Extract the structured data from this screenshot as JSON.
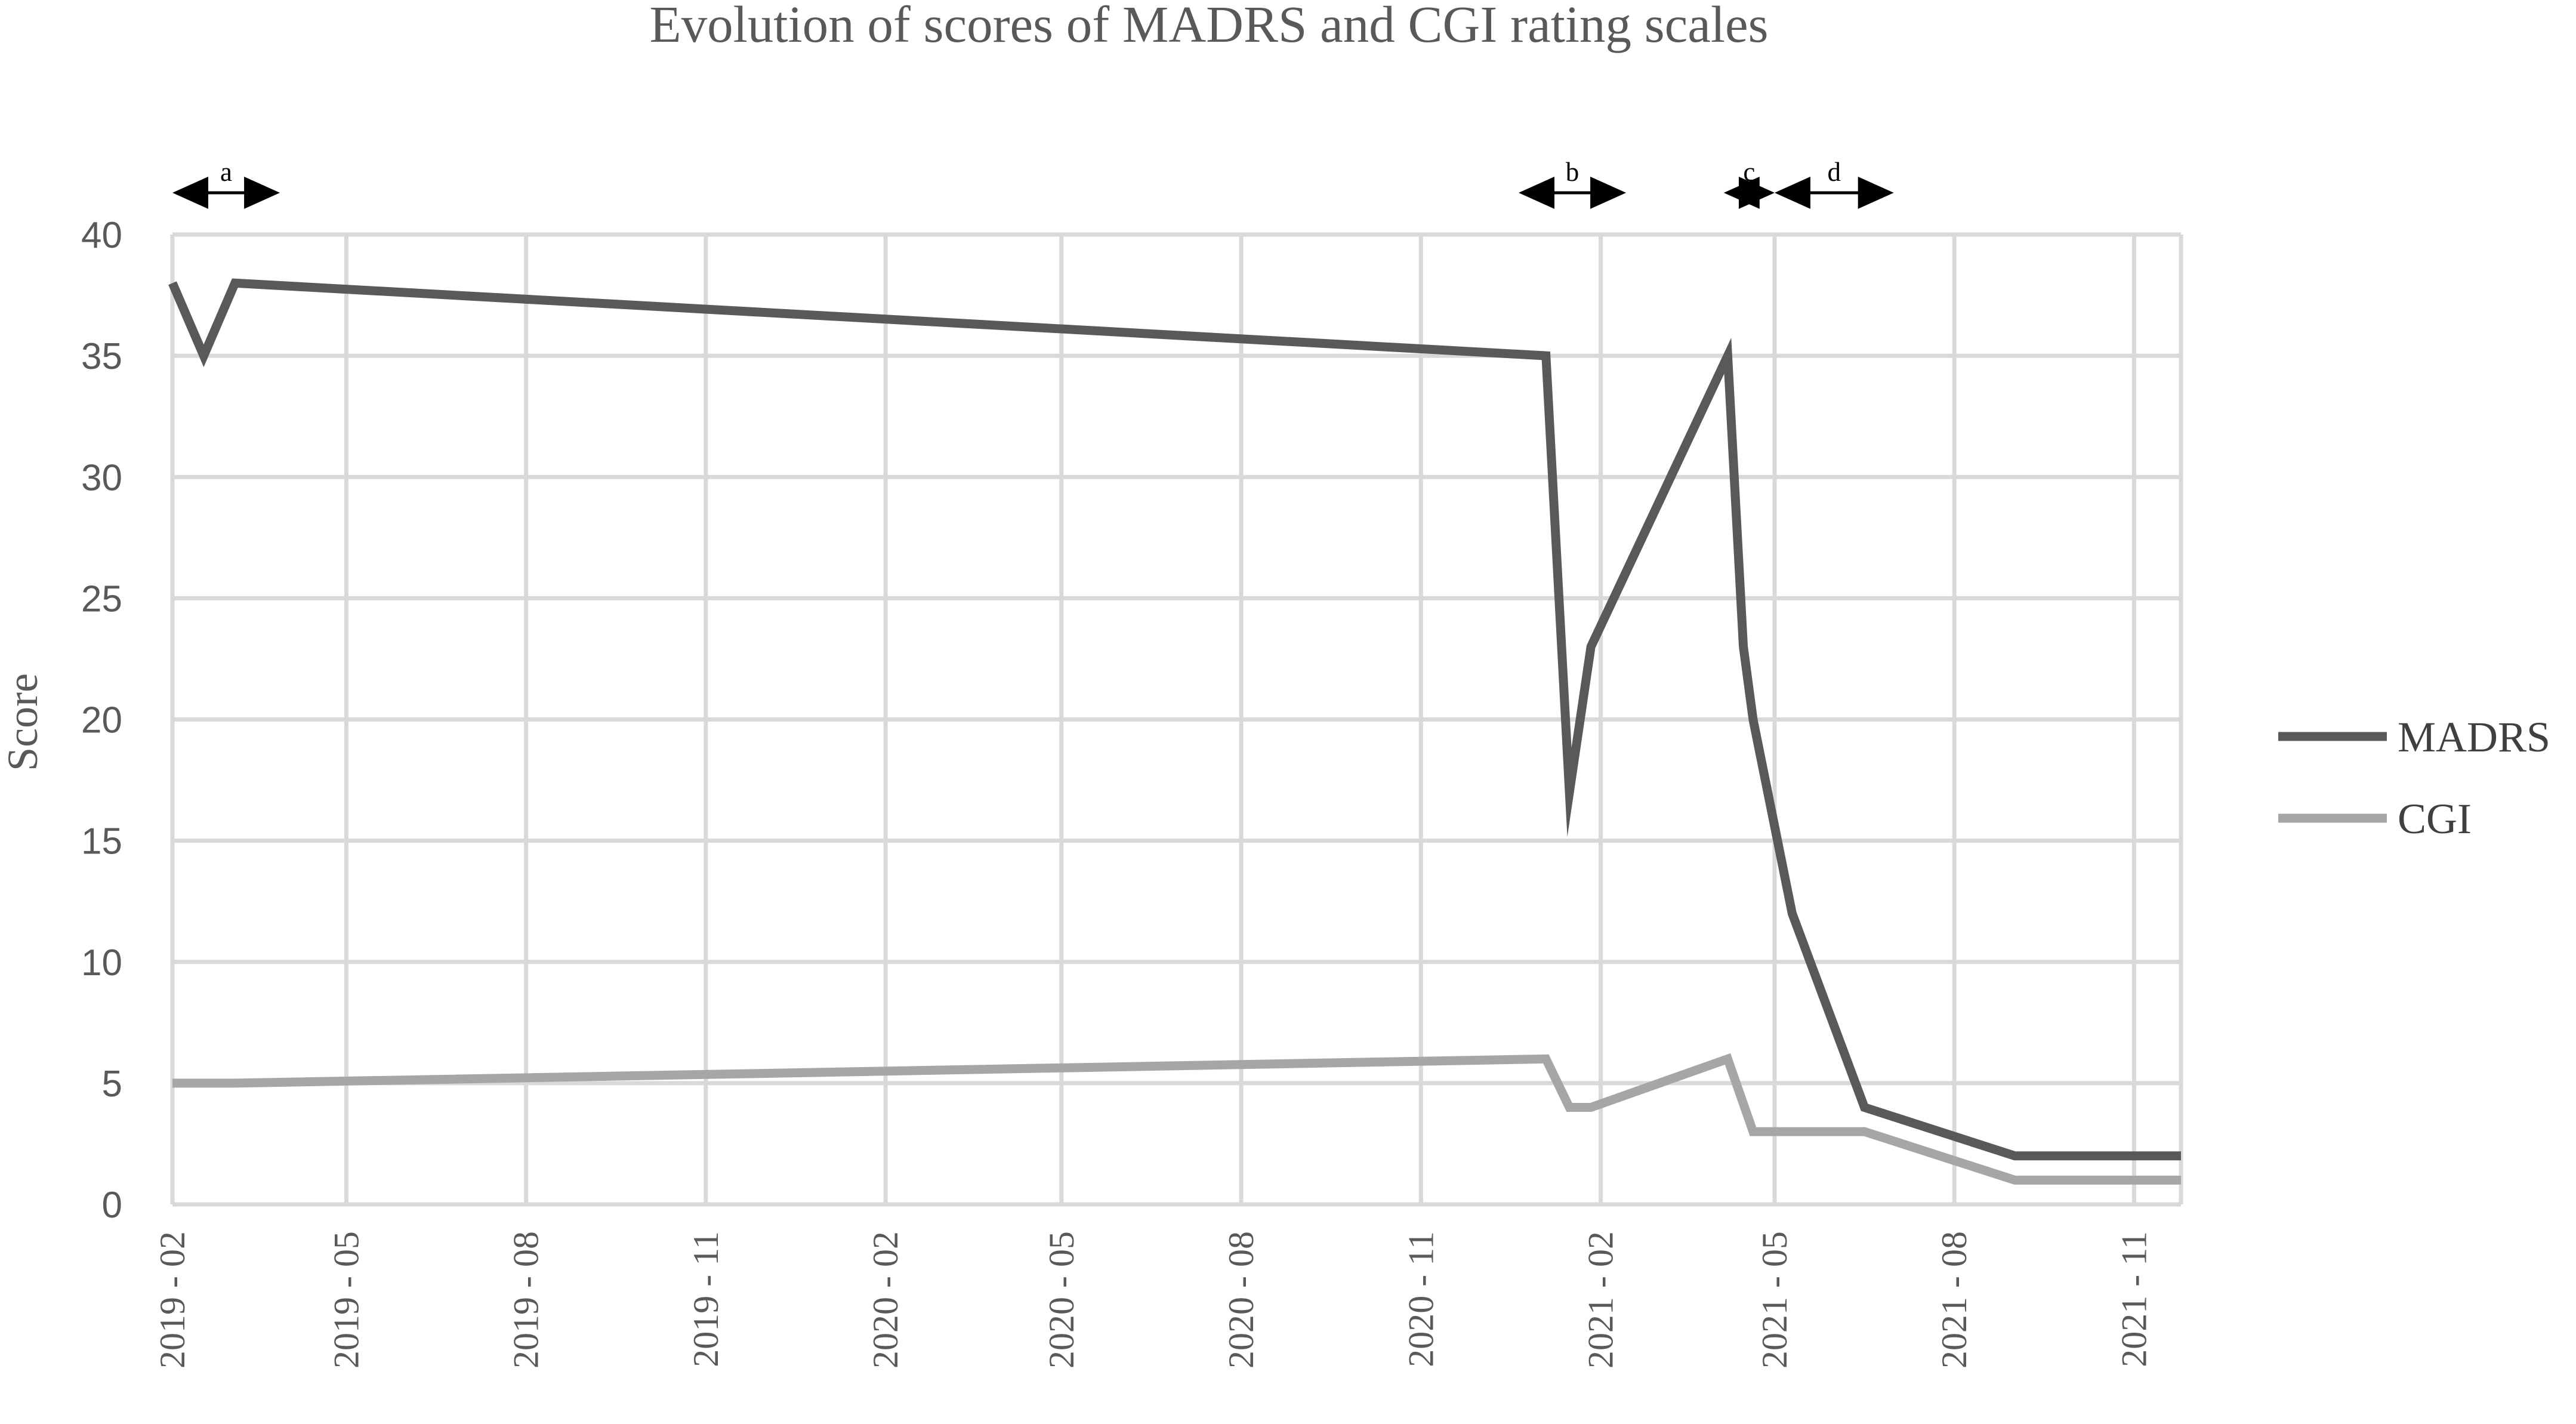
{
  "chart_data": {
    "type": "line",
    "title": "Evolution of scores of MADRS and CGI rating scales",
    "xlabel": "",
    "ylabel": "Score",
    "ylim": [
      0,
      40
    ],
    "yticks": [
      "0",
      "5",
      "10",
      "15",
      "20",
      "25",
      "30",
      "35",
      "40"
    ],
    "x_range": [
      "2019-02-01",
      "2021-11-25"
    ],
    "xticks": [
      {
        "date": "2019-02-01",
        "label": "2019 - 02"
      },
      {
        "date": "2019-05-01",
        "label": "2019 - 05"
      },
      {
        "date": "2019-08-01",
        "label": "2019 - 08"
      },
      {
        "date": "2019-11-01",
        "label": "2019 - 11"
      },
      {
        "date": "2020-02-01",
        "label": "2020 - 02"
      },
      {
        "date": "2020-05-01",
        "label": "2020 - 05"
      },
      {
        "date": "2020-08-01",
        "label": "2020 - 08"
      },
      {
        "date": "2020-11-01",
        "label": "2020 - 11"
      },
      {
        "date": "2021-02-01",
        "label": "2021 - 02"
      },
      {
        "date": "2021-05-01",
        "label": "2021 - 05"
      },
      {
        "date": "2021-08-01",
        "label": "2021 - 08"
      },
      {
        "date": "2021-11-01",
        "label": "2021 - 11"
      }
    ],
    "grid": true,
    "legend_position": "right",
    "series": [
      {
        "name": "MADRS",
        "color": "#595959",
        "points": [
          {
            "x": "2019-02-01",
            "y": 38
          },
          {
            "x": "2019-02-17",
            "y": 35
          },
          {
            "x": "2019-03-05",
            "y": 38
          },
          {
            "x": "2021-01-04",
            "y": 35
          },
          {
            "x": "2021-01-16",
            "y": 17
          },
          {
            "x": "2021-01-27",
            "y": 23
          },
          {
            "x": "2021-04-07",
            "y": 35
          },
          {
            "x": "2021-04-15",
            "y": 23
          },
          {
            "x": "2021-04-20",
            "y": 20
          },
          {
            "x": "2021-05-10",
            "y": 12
          },
          {
            "x": "2021-06-16",
            "y": 4
          },
          {
            "x": "2021-09-01",
            "y": 2
          },
          {
            "x": "2021-11-25",
            "y": 2
          }
        ]
      },
      {
        "name": "CGI",
        "color": "#a6a6a6",
        "points": [
          {
            "x": "2019-02-01",
            "y": 5
          },
          {
            "x": "2019-03-05",
            "y": 5
          },
          {
            "x": "2021-01-04",
            "y": 6
          },
          {
            "x": "2021-01-16",
            "y": 4
          },
          {
            "x": "2021-01-27",
            "y": 4
          },
          {
            "x": "2021-04-07",
            "y": 6
          },
          {
            "x": "2021-04-20",
            "y": 3
          },
          {
            "x": "2021-06-16",
            "y": 3
          },
          {
            "x": "2021-09-01",
            "y": 1
          },
          {
            "x": "2021-11-25",
            "y": 1
          }
        ]
      }
    ],
    "annotations": [
      {
        "label": "a",
        "from": "2019-02-01",
        "to": "2019-03-28"
      },
      {
        "label": "b",
        "from": "2020-12-21",
        "to": "2021-02-14"
      },
      {
        "label": "c",
        "from": "2021-04-05",
        "to": "2021-05-01"
      },
      {
        "label": "d",
        "from": "2021-05-01",
        "to": "2021-07-01"
      }
    ]
  }
}
